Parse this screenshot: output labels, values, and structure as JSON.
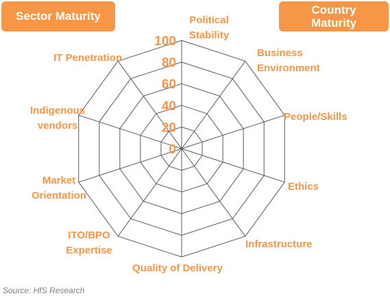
{
  "header": {
    "left_box_label": "Sector Maturity",
    "right_box_line1": "Country",
    "right_box_line2": "Maturity"
  },
  "source": "Source: HfS Research",
  "colors": {
    "accent": "#f79646",
    "label": "#f79646",
    "grid": "#595959",
    "box_text": "#ffffff",
    "source": "#7f7f7f"
  },
  "chart_data": {
    "type": "radar",
    "axes": [
      "Political Stability",
      "Business Environment",
      "People/Skills",
      "Ethics",
      "Infrastructure",
      "Quality of Delivery",
      "ITO/BPO Expertise",
      "Market Orientation",
      "Indigenous vendors",
      "IT Penetration"
    ],
    "axis_label_lines": [
      [
        "Political",
        "Stability"
      ],
      [
        "Business",
        "Environment"
      ],
      [
        "People/Skills"
      ],
      [
        "Ethics"
      ],
      [
        "Infrastructure"
      ],
      [
        "Quality of Delivery"
      ],
      [
        "ITO/BPO",
        "Expertise"
      ],
      [
        "Market",
        "Orientation"
      ],
      [
        "Indigenous",
        "vendors"
      ],
      [
        "IT Penetration"
      ]
    ],
    "ticks": [
      0,
      20,
      40,
      60,
      80,
      100
    ],
    "range": [
      0,
      100
    ],
    "series": [],
    "grid": true
  }
}
